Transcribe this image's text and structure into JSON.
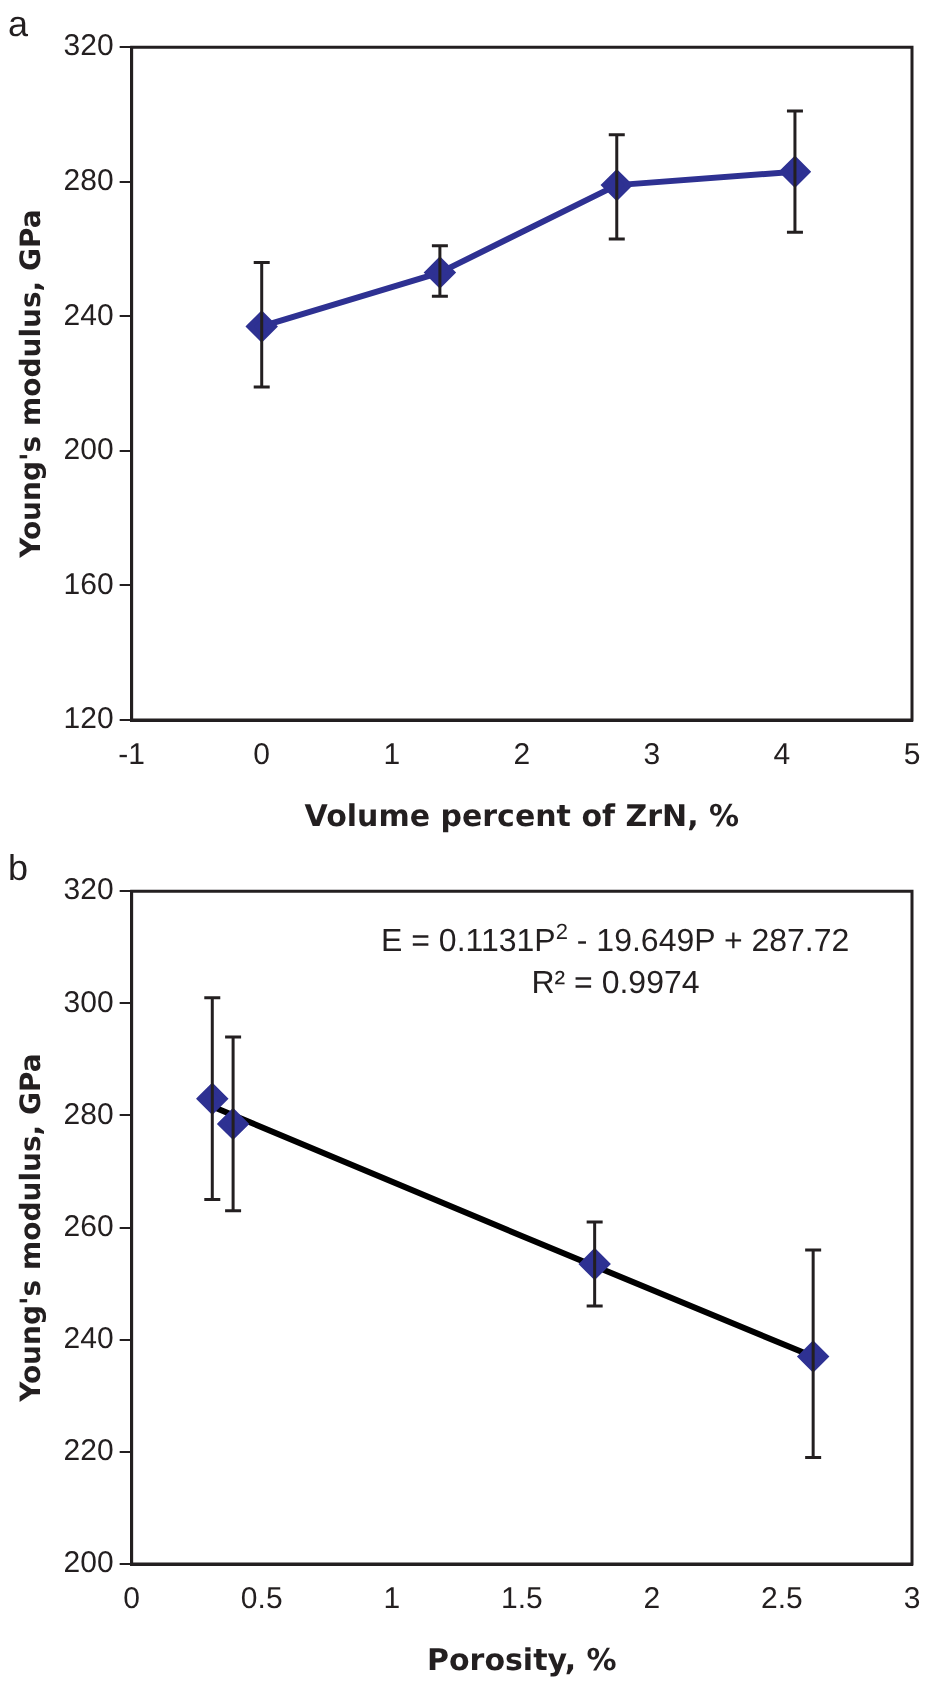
{
  "chart_data": [
    {
      "type": "line",
      "title": "a",
      "xlabel": "Volume percent of ZrN, %",
      "ylabel": "Young's modulus, GPa",
      "xlim": [
        -1,
        5
      ],
      "xticks": [
        -1,
        0,
        1,
        2,
        3,
        4,
        5
      ],
      "ylim": [
        120,
        320
      ],
      "yticks": [
        120,
        160,
        200,
        240,
        280,
        320
      ],
      "grid": false,
      "legend": false,
      "marker": "diamond",
      "series": [
        {
          "color": "#2e3192",
          "x": [
            0,
            1.37,
            2.73,
            4.1
          ],
          "values": [
            237,
            253,
            279,
            283
          ],
          "errors": [
            [
              219,
              256
            ],
            [
              246,
              261
            ],
            [
              263,
              294
            ],
            [
              265,
              301
            ]
          ]
        }
      ]
    },
    {
      "type": "scatter",
      "title": "b",
      "xlabel": "Porosity, %",
      "ylabel": "Young's modulus, GPa",
      "xlim": [
        0,
        3
      ],
      "xticks": [
        0,
        0.5,
        1,
        1.5,
        2,
        2.5,
        3
      ],
      "ylim": [
        200,
        320
      ],
      "yticks": [
        200,
        220,
        240,
        260,
        280,
        300,
        320
      ],
      "grid": false,
      "legend": false,
      "marker": "diamond",
      "annotations": [
        "E = 0.1131P$^{2}$ - 19.649P + 287.72",
        "R² = 0.9974"
      ],
      "series": [
        {
          "color": "#2e3192",
          "x": [
            0.31,
            0.39,
            1.78,
            2.62
          ],
          "values": [
            283,
            278.5,
            253.5,
            237
          ],
          "errors": [
            [
              265,
              301
            ],
            [
              263,
              294
            ],
            [
              246,
              261
            ],
            [
              219,
              256
            ]
          ]
        },
        {
          "type": "line",
          "marker": "none",
          "color": "#000000",
          "x": [
            0.31,
            1.5,
            2.62
          ],
          "values": [
            281.6,
            258.5,
            237
          ]
        }
      ]
    }
  ]
}
